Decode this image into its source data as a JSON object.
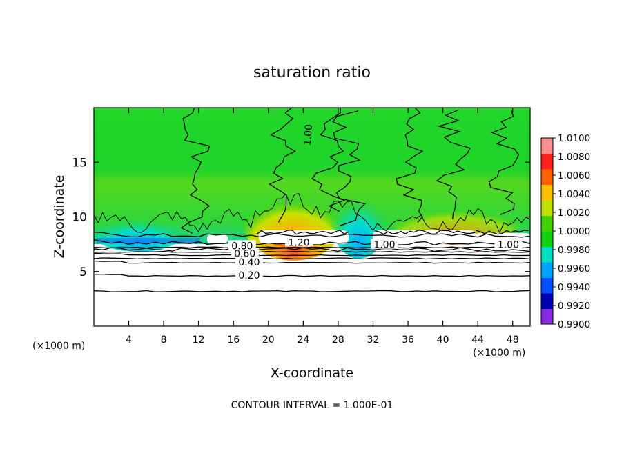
{
  "chart_data": {
    "type": "contour",
    "title": "saturation ratio",
    "xlabel": "X-coordinate",
    "ylabel": "Z-coordinate",
    "x_unit_left": "(×1000 m)",
    "x_unit_right": "(×1000 m)",
    "xlim": [
      0,
      50
    ],
    "ylim": [
      0,
      20
    ],
    "x_ticks": [
      4,
      8,
      12,
      16,
      20,
      24,
      28,
      32,
      36,
      40,
      44,
      48
    ],
    "x_tick_labels": [
      "4",
      "8",
      "12",
      "16",
      "20",
      "24",
      "28",
      "32",
      "36",
      "40",
      "44",
      "48"
    ],
    "y_ticks": [
      5,
      10,
      15
    ],
    "y_tick_labels": [
      "5",
      "10",
      "15"
    ],
    "footer": "CONTOUR INTERVAL = 1.000E-01",
    "contour_interval": 0.1,
    "colorbar": {
      "min": 0.99,
      "max": 1.01,
      "labels": [
        "1.0100",
        "1.0080",
        "1.0060",
        "1.0040",
        "1.0020",
        "1.0000",
        "0.9980",
        "0.9960",
        "0.9940",
        "0.9920",
        "0.9900"
      ],
      "colors": [
        "#8a2be2",
        "#0000b0",
        "#0050ff",
        "#00a0ff",
        "#00e0c0",
        "#10d010",
        "#40d000",
        "#c0e000",
        "#ffc000",
        "#ff6000",
        "#ff2020",
        "#ff9090"
      ]
    },
    "contour_levels": [
      {
        "label": "0.20",
        "z": 4.6
      },
      {
        "label": "0.40",
        "z": 5.8
      },
      {
        "label": "0.60",
        "z": 6.5
      },
      {
        "label": "0.80",
        "z": 7.0
      },
      {
        "label": "1.00",
        "z": 7.6
      },
      {
        "label": "1.20",
        "z": 8.3
      }
    ],
    "contour_labels_in_plot": [
      {
        "text": "0.20",
        "x": 17.8,
        "z": 4.6
      },
      {
        "text": "0.40",
        "x": 17.8,
        "z": 5.8
      },
      {
        "text": "0.60",
        "x": 17.3,
        "z": 6.6
      },
      {
        "text": "0.80",
        "x": 17.0,
        "z": 7.3
      },
      {
        "text": "1.20",
        "x": 23.5,
        "z": 7.6
      },
      {
        "text": "1.00",
        "x": 33.3,
        "z": 7.4
      },
      {
        "text": "1.00",
        "x": 47.5,
        "z": 7.4
      },
      {
        "text": "1.00",
        "x": 24.6,
        "z": 17.5
      }
    ]
  }
}
